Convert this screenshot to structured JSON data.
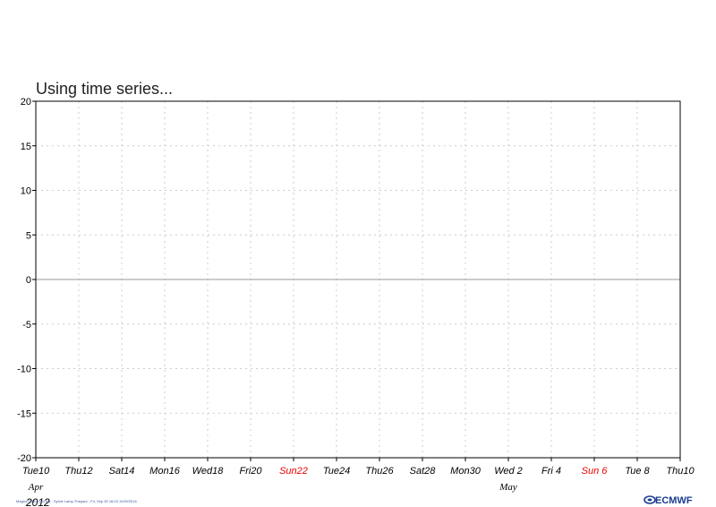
{
  "chart_data": {
    "type": "line",
    "title": "Using time series...",
    "ylim": [
      -20,
      20
    ],
    "yticks": [
      20,
      15,
      10,
      5,
      0,
      -5,
      -10,
      -15,
      -20
    ],
    "ytick_labels": [
      "20",
      "15",
      "10",
      "5",
      "0",
      "-5",
      "-10",
      "-15",
      "-20"
    ],
    "xlim": [
      "2012-04-10",
      "2012-05-10"
    ],
    "x_ticks": [
      {
        "label": "Tue10",
        "date": "2012-04-10",
        "weekend": false
      },
      {
        "label": "Thu12",
        "date": "2012-04-12",
        "weekend": false
      },
      {
        "label": "Sat14",
        "date": "2012-04-14",
        "weekend": false
      },
      {
        "label": "Mon16",
        "date": "2012-04-16",
        "weekend": false
      },
      {
        "label": "Wed18",
        "date": "2012-04-18",
        "weekend": false
      },
      {
        "label": "Fri20",
        "date": "2012-04-20",
        "weekend": false
      },
      {
        "label": "Sun22",
        "date": "2012-04-22",
        "weekend": true
      },
      {
        "label": "Tue24",
        "date": "2012-04-24",
        "weekend": false
      },
      {
        "label": "Thu26",
        "date": "2012-04-26",
        "weekend": false
      },
      {
        "label": "Sat28",
        "date": "2012-04-28",
        "weekend": false
      },
      {
        "label": "Mon30",
        "date": "2012-04-30",
        "weekend": false
      },
      {
        "label": "Wed 2",
        "date": "2012-05-02",
        "weekend": false
      },
      {
        "label": "Fri 4",
        "date": "2012-05-04",
        "weekend": false
      },
      {
        "label": "Sun 6",
        "date": "2012-05-06",
        "weekend": true
      },
      {
        "label": "Tue 8",
        "date": "2012-05-08",
        "weekend": false
      },
      {
        "label": "Thu10",
        "date": "2012-05-10",
        "weekend": false
      }
    ],
    "months": [
      {
        "label": "Apr",
        "date": "2012-04-10"
      },
      {
        "label": "May",
        "date": "2012-05-02"
      }
    ],
    "year": "2012",
    "series": [],
    "grid": true,
    "reference_line_y": 0,
    "colors": {
      "weekday": "#000000",
      "sunday": "#ee0000",
      "grid": "#cccccc",
      "zero_line": "#999999"
    }
  },
  "footer": {
    "text": "Magics 2.18.0 (64 bit) - Sylvie Lamy-Thepaut - Fri, Sep 30 16:03 11/09/2016",
    "logo": "ECMWF",
    "logo_icon": "ecmwf-logo-icon"
  }
}
